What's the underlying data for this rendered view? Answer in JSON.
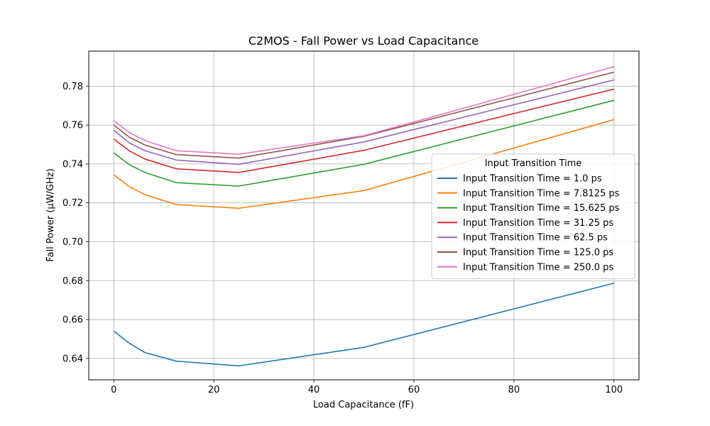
{
  "chart_data": {
    "type": "line",
    "title": "C2MOS - Fall Power vs Load Capacitance",
    "xlabel": "Load Capacitance (fF)",
    "ylabel": "Fall Power (μW/GHz)",
    "xlim": [
      -5,
      105
    ],
    "ylim": [
      0.629,
      0.798
    ],
    "x_ticks": [
      0,
      20,
      40,
      60,
      80,
      100
    ],
    "y_ticks": [
      0.64,
      0.66,
      0.68,
      0.7,
      0.72,
      0.74,
      0.76,
      0.78
    ],
    "grid": true,
    "legend": {
      "title": "Input Transition Time",
      "placement": "center-right"
    },
    "x": [
      0,
      3.125,
      6.25,
      12.5,
      25,
      50,
      100
    ],
    "series": [
      {
        "name": "Input Transition Time = 1.0 ps",
        "color": "#1f77b4",
        "values": [
          0.6541,
          0.6478,
          0.643,
          0.6386,
          0.6362,
          0.6457,
          0.6787
        ]
      },
      {
        "name": "Input Transition Time = 7.8125 ps",
        "color": "#ff7f0e",
        "values": [
          0.7345,
          0.7283,
          0.7242,
          0.7191,
          0.7172,
          0.7263,
          0.7628
        ]
      },
      {
        "name": "Input Transition Time = 15.625 ps",
        "color": "#2ca02c",
        "values": [
          0.7457,
          0.7396,
          0.7356,
          0.7304,
          0.7286,
          0.7398,
          0.7727
        ]
      },
      {
        "name": "Input Transition Time = 31.25 ps",
        "color": "#d62728",
        "values": [
          0.7528,
          0.7467,
          0.7425,
          0.7375,
          0.7356,
          0.747,
          0.7785
        ]
      },
      {
        "name": "Input Transition Time = 62.5 ps",
        "color": "#9467bd",
        "values": [
          0.7573,
          0.7508,
          0.7468,
          0.742,
          0.7398,
          0.7513,
          0.7832
        ]
      },
      {
        "name": "Input Transition Time = 125.0 ps",
        "color": "#8c564b",
        "values": [
          0.76,
          0.7537,
          0.7497,
          0.7448,
          0.743,
          0.7542,
          0.7872
        ]
      },
      {
        "name": "Input Transition Time = 250.0 ps",
        "color": "#e377c2",
        "values": [
          0.7622,
          0.7561,
          0.752,
          0.7468,
          0.745,
          0.7545,
          0.79
        ]
      }
    ]
  }
}
